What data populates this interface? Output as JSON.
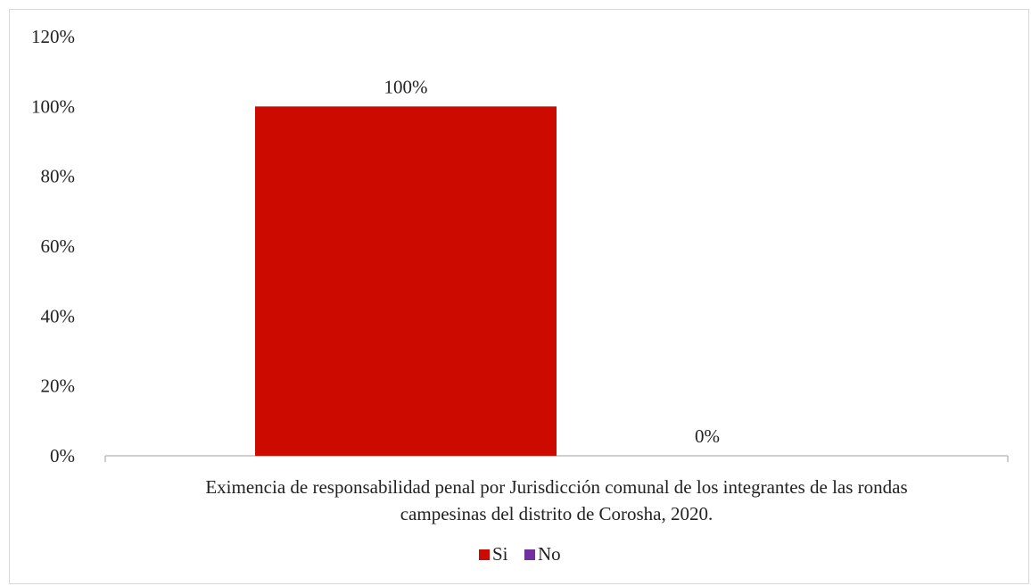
{
  "chart_data": {
    "type": "bar",
    "categories": [
      "Eximencia de responsabilidad penal por Jurisdicción comunal de los integrantes de las rondas campesinas del distrito de Corosha, 2020."
    ],
    "category_label_lines": [
      "Eximencia de responsabilidad penal por Jurisdicción comunal de los integrantes de las rondas",
      "campesinas del distrito de Corosha, 2020."
    ],
    "series": [
      {
        "name": "Si",
        "values": [
          100
        ],
        "color": "#cc0a00",
        "data_label": "100%"
      },
      {
        "name": "No",
        "values": [
          0
        ],
        "color": "#7030a0",
        "data_label": "0%"
      }
    ],
    "ylim": [
      0,
      120
    ],
    "yticks": [
      {
        "value": 0,
        "label": "0%"
      },
      {
        "value": 20,
        "label": "20%"
      },
      {
        "value": 40,
        "label": "40%"
      },
      {
        "value": 60,
        "label": "60%"
      },
      {
        "value": 80,
        "label": "80%"
      },
      {
        "value": 100,
        "label": "100%"
      },
      {
        "value": 120,
        "label": "120%"
      }
    ],
    "grid": false,
    "legend_position": "bottom"
  }
}
